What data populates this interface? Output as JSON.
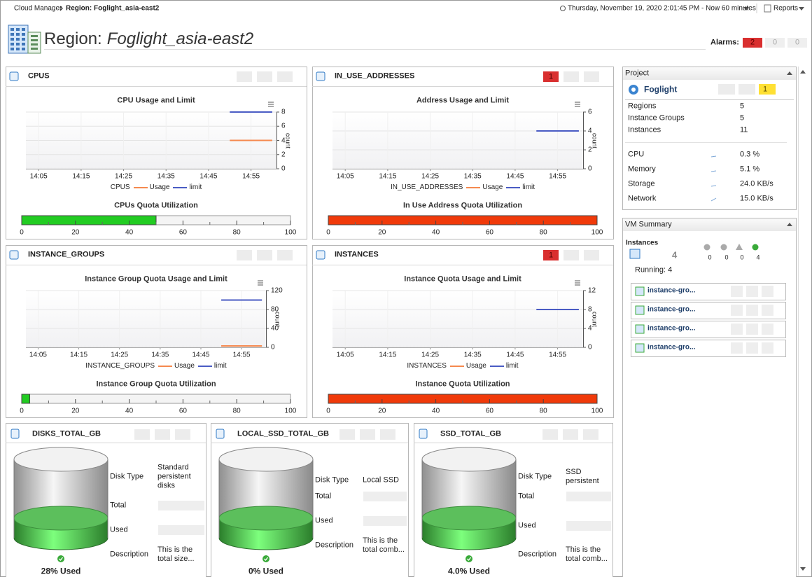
{
  "breadcrumb": {
    "root": "Cloud Manager",
    "current": "Region: Foglight_asia-east2"
  },
  "time_range": "Thursday, November 19, 2020 2:01:45 PM - Now 60 minutes",
  "reports": "Reports",
  "header": {
    "title_prefix": "Region:",
    "title_name": "Foglight_asia-east2",
    "alarms_label": "Alarms:",
    "alarms": [
      2,
      0,
      0
    ]
  },
  "quota_panels": [
    {
      "name": "CPUS",
      "chart": {
        "title": "CPU Usage and Limit",
        "xlim": [
          "14:02",
          "15:01"
        ],
        "xticks": [
          "14:05",
          "14:15",
          "14:25",
          "14:35",
          "14:45",
          "14:55"
        ],
        "ylim": [
          0,
          8
        ],
        "yticks": [
          0,
          2,
          4,
          6,
          8
        ],
        "ylabel": "count",
        "legend_title": "CPUS",
        "x": [
          "14:50",
          "15:00"
        ],
        "series": [
          {
            "name": "Usage",
            "color": "#f5894f",
            "values": [
              4,
              4
            ]
          },
          {
            "name": "limit",
            "color": "#4a5cc4",
            "values": [
              8,
              8
            ]
          }
        ]
      },
      "quota": {
        "title": "CPUs Quota Utilization",
        "value": 50,
        "color": "#22cc22",
        "xlim": [
          0,
          100
        ],
        "xticks": [
          0,
          20,
          40,
          60,
          80,
          100
        ]
      }
    },
    {
      "name": "IN_USE_ADDRESSES",
      "critical_alarms": 1,
      "chart": {
        "title": "Address Usage and Limit",
        "xlim": [
          "14:02",
          "15:01"
        ],
        "xticks": [
          "14:05",
          "14:15",
          "14:25",
          "14:35",
          "14:45",
          "14:55"
        ],
        "ylim": [
          0,
          6
        ],
        "yticks": [
          0,
          2,
          4,
          6
        ],
        "ylabel": "count",
        "legend_title": "IN_USE_ADDRESSES",
        "x": [
          "14:50",
          "15:00"
        ],
        "series": [
          {
            "name": "Usage",
            "color": "#f5894f",
            "values": [
              null,
              null
            ]
          },
          {
            "name": "limit",
            "color": "#4a5cc4",
            "values": [
              4,
              4
            ]
          }
        ]
      },
      "quota": {
        "title": "In Use Address Quota Utilization",
        "value": 100,
        "color": "#f03a0a",
        "xlim": [
          0,
          100
        ],
        "xticks": [
          0,
          20,
          40,
          60,
          80,
          100
        ]
      }
    },
    {
      "name": "INSTANCE_GROUPS",
      "chart": {
        "title": "Instance Group Quota Usage and Limit",
        "xlim": [
          "14:02",
          "15:01"
        ],
        "xticks": [
          "14:05",
          "14:15",
          "14:25",
          "14:35",
          "14:45",
          "14:55"
        ],
        "ylim": [
          0,
          120
        ],
        "yticks": [
          0,
          40,
          80,
          120
        ],
        "ylabel": "count",
        "legend_title": "INSTANCE_GROUPS",
        "x": [
          "14:50",
          "15:00"
        ],
        "series": [
          {
            "name": "Usage",
            "color": "#f5894f",
            "values": [
              3,
              3
            ]
          },
          {
            "name": "limit",
            "color": "#4a5cc4",
            "values": [
              100,
              100
            ]
          }
        ]
      },
      "quota": {
        "title": "Instance Group Quota Utilization",
        "value": 3,
        "color": "#22cc22",
        "xlim": [
          0,
          100
        ],
        "xticks": [
          0,
          20,
          40,
          60,
          80,
          100
        ]
      }
    },
    {
      "name": "INSTANCES",
      "critical_alarms": 1,
      "chart": {
        "title": "Instance Quota Usage and Limit",
        "xlim": [
          "14:02",
          "15:01"
        ],
        "xticks": [
          "14:05",
          "14:15",
          "14:25",
          "14:35",
          "14:45",
          "14:55"
        ],
        "ylim": [
          0,
          12
        ],
        "yticks": [
          0,
          4,
          8,
          12
        ],
        "ylabel": "count",
        "legend_title": "INSTANCES",
        "x": [
          "14:50",
          "15:00"
        ],
        "series": [
          {
            "name": "Usage",
            "color": "#f5894f",
            "values": [
              null,
              null
            ]
          },
          {
            "name": "limit",
            "color": "#4a5cc4",
            "values": [
              8,
              8
            ]
          }
        ]
      },
      "quota": {
        "title": "Instance Quota Utilization",
        "value": 100,
        "color": "#f03a0a",
        "xlim": [
          0,
          100
        ],
        "xticks": [
          0,
          20,
          40,
          60,
          80,
          100
        ]
      }
    }
  ],
  "disk_panels": [
    {
      "name": "DISKS_TOTAL_GB",
      "fields": [
        {
          "label": "Disk Type",
          "value": "Standard persistent disks"
        },
        {
          "label": "Total"
        },
        {
          "label": "Used"
        },
        {
          "label": "Description",
          "value": "This is the total size..."
        }
      ],
      "usage": "28% Used"
    },
    {
      "name": "LOCAL_SSD_TOTAL_GB",
      "fields": [
        {
          "label": "Disk Type",
          "value": "Local SSD"
        },
        {
          "label": "Total"
        },
        {
          "label": "Used"
        },
        {
          "label": "Description",
          "value": "This is the total comb..."
        }
      ],
      "usage": "0% Used"
    },
    {
      "name": "SSD_TOTAL_GB",
      "fields": [
        {
          "label": "Disk Type",
          "value": "SSD persistent"
        },
        {
          "label": "Total"
        },
        {
          "label": "Used"
        },
        {
          "label": "Description",
          "value": "This is the total comb..."
        }
      ],
      "usage": "4.0% Used"
    }
  ],
  "project": {
    "title": "Project",
    "name": "Foglight",
    "alarm": 1,
    "counts": [
      {
        "label": "Regions",
        "value": 5
      },
      {
        "label": "Instance Groups",
        "value": 5
      },
      {
        "label": "Instances",
        "value": 11
      }
    ],
    "metrics": [
      {
        "label": "CPU",
        "value": "0.3 %"
      },
      {
        "label": "Memory",
        "value": "5.1 %"
      },
      {
        "label": "Storage",
        "value": "24.0 KB/s"
      },
      {
        "label": "Network",
        "value": "15.0 KB/s"
      }
    ]
  },
  "vm_summary": {
    "title": "VM Summary",
    "instances_label": "Instances",
    "instances_count": 4,
    "status_counts": [
      0,
      0,
      0,
      4
    ],
    "running": "Running: 4",
    "items": [
      "instance-gro...",
      "instance-gro...",
      "instance-gro...",
      "instance-gro..."
    ]
  }
}
